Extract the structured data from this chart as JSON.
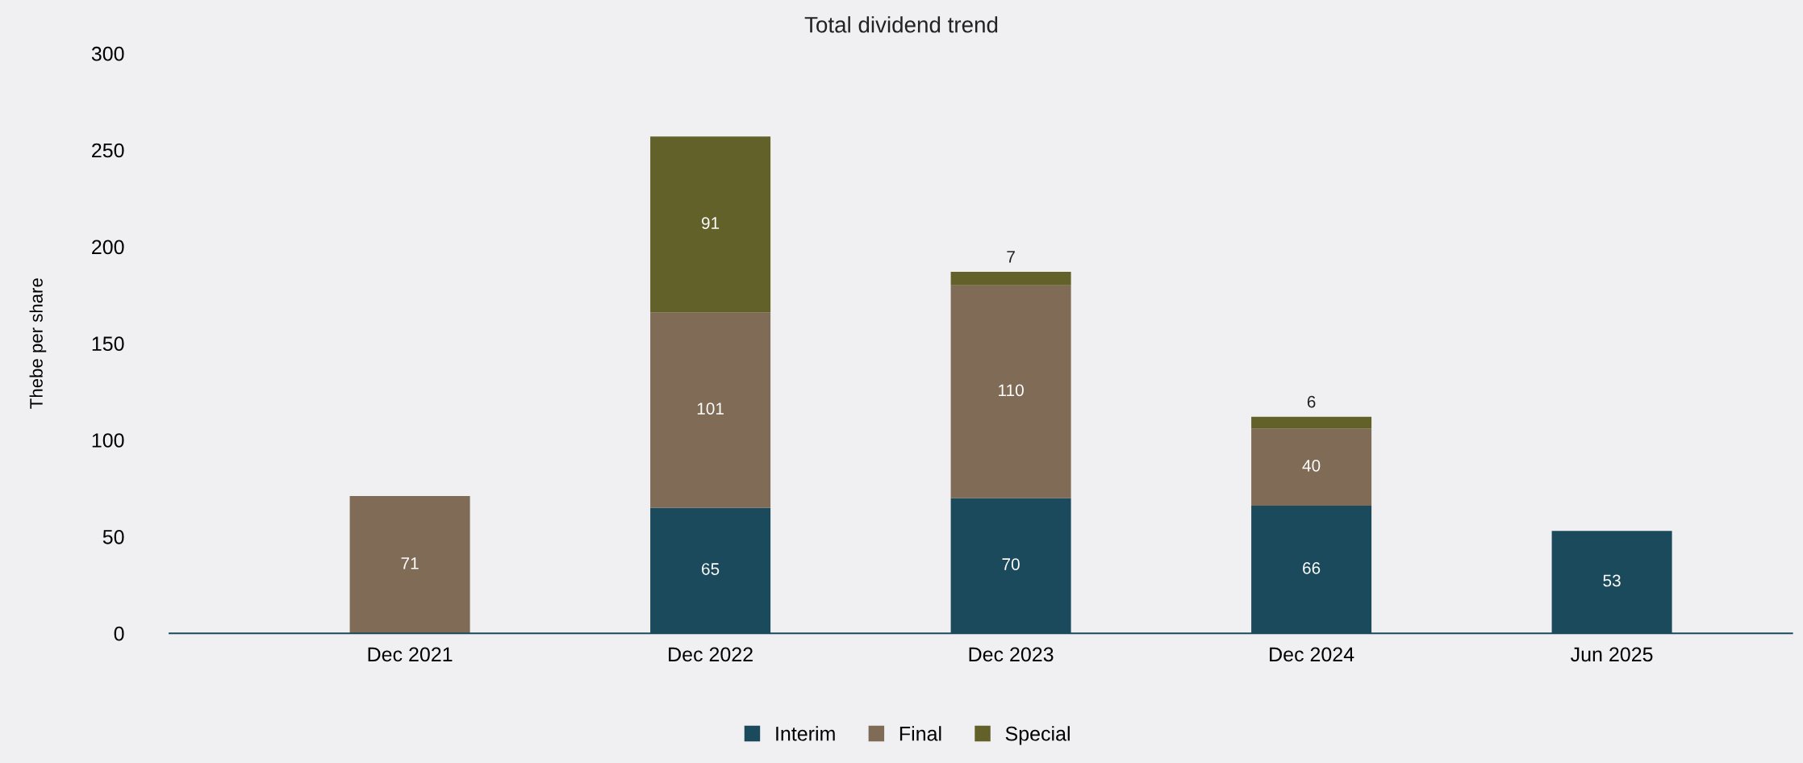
{
  "chart_data": {
    "type": "bar",
    "title": "Total dividend trend",
    "ylabel": "Thebe per share",
    "categories": [
      "Dec 2021",
      "Dec 2022",
      "Dec 2023",
      "Dec 2024",
      "Jun 2025"
    ],
    "stacked": true,
    "series": [
      {
        "name": "Interim",
        "color": "#1b4a5c",
        "values": [
          null,
          65,
          70,
          66,
          53
        ]
      },
      {
        "name": "Final",
        "color": "#7f6b56",
        "values": [
          71,
          101,
          110,
          40,
          null
        ]
      },
      {
        "name": "Special",
        "color": "#62612a",
        "values": [
          null,
          91,
          7,
          6,
          null
        ]
      }
    ],
    "ylim": [
      0,
      300
    ],
    "yticks": [
      0,
      50,
      100,
      150,
      200,
      250,
      300
    ],
    "data_labels": true,
    "legend": "bottom",
    "grid": false
  }
}
